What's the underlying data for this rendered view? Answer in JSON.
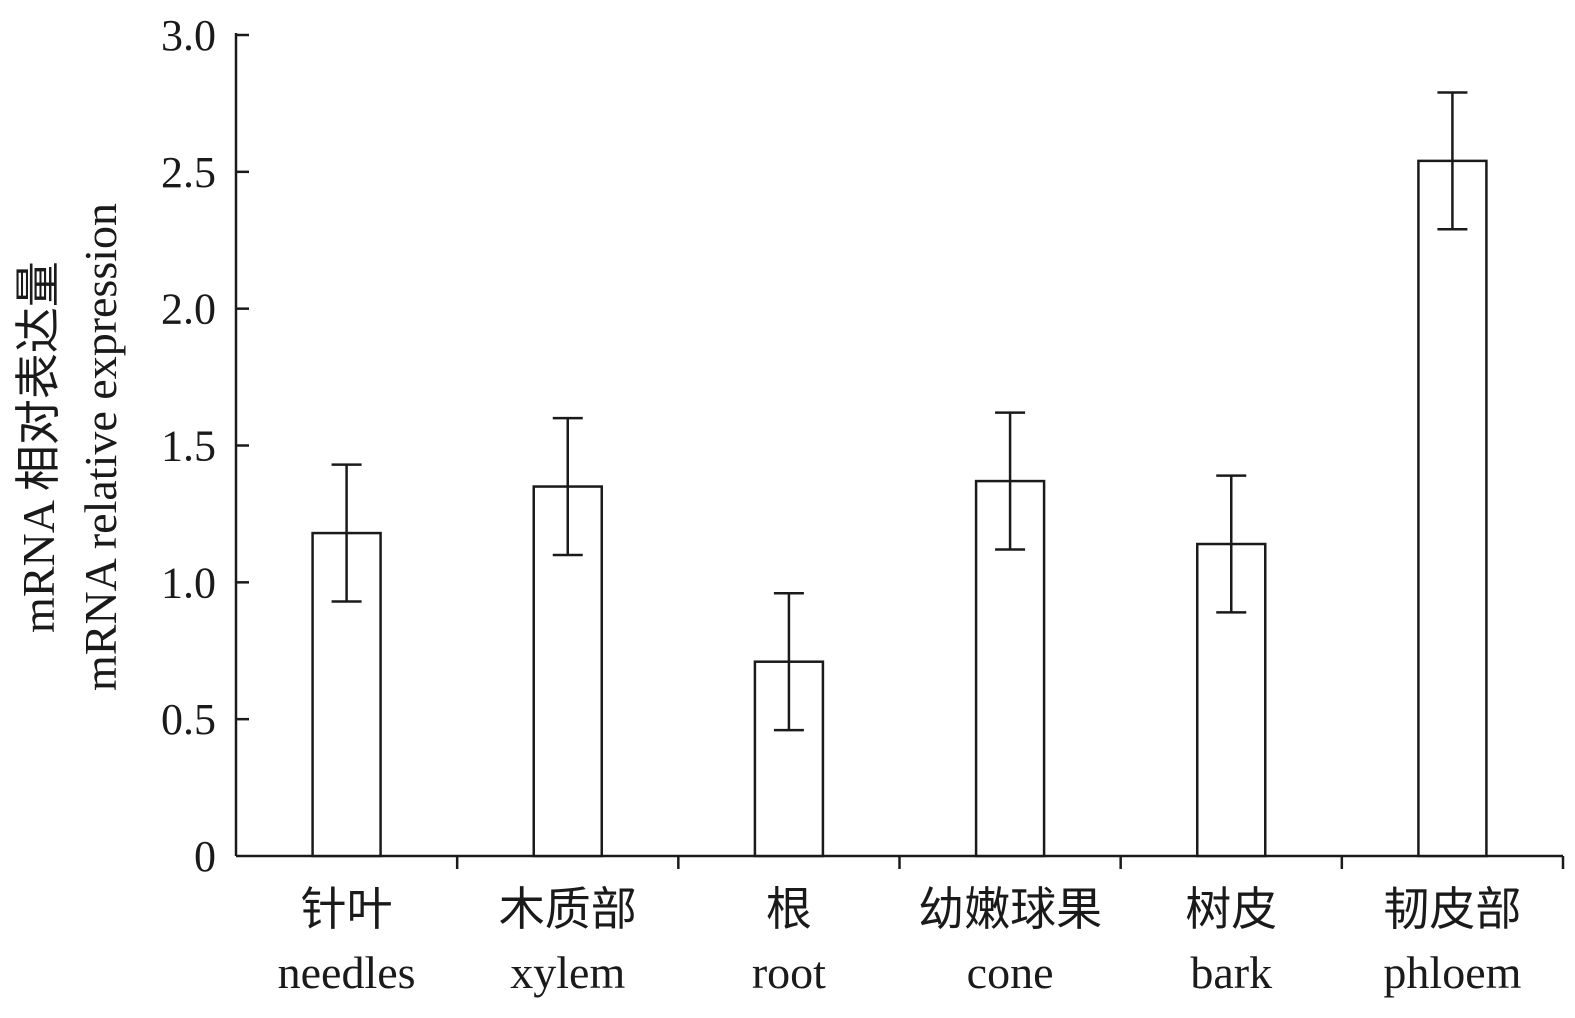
{
  "chart_data": {
    "type": "bar",
    "title": "",
    "ylabel_lines": [
      "mRNA 相对表达量",
      "mRNA relative expression"
    ],
    "xlabel": "",
    "ylim": [
      0,
      3.0
    ],
    "yticks": [
      "0",
      "0.5",
      "1.0",
      "1.5",
      "2.0",
      "2.5",
      "3.0"
    ],
    "categories": [
      {
        "zh": "针叶",
        "en": "needles"
      },
      {
        "zh": "木质部",
        "en": "xylem"
      },
      {
        "zh": "根",
        "en": "root"
      },
      {
        "zh": "幼嫩球果",
        "en": "cone"
      },
      {
        "zh": "树皮",
        "en": "bark"
      },
      {
        "zh": "韧皮部",
        "en": "phloem"
      }
    ],
    "values": [
      1.18,
      1.35,
      0.71,
      1.37,
      1.14,
      2.54
    ],
    "errors": [
      0.25,
      0.25,
      0.25,
      0.25,
      0.25,
      0.25
    ],
    "grid": false,
    "legend": "none",
    "colors": {
      "bar_fill": "#ffffff",
      "stroke": "#1a1a1a"
    }
  }
}
